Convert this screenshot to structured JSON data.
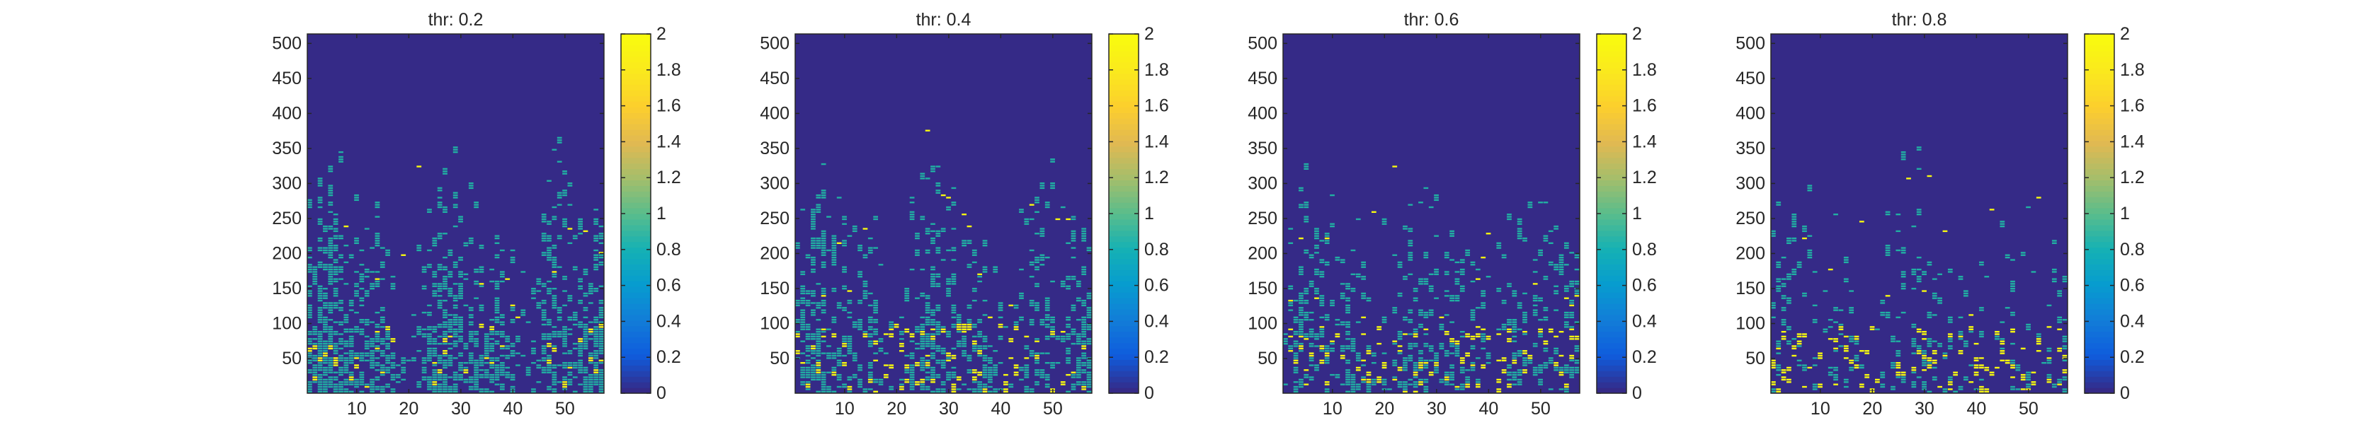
{
  "chart_data": [
    {
      "type": "heatmap",
      "title": "thr: 0.2",
      "xlabel": "",
      "ylabel": "",
      "x_ticks": [
        10,
        20,
        30,
        40,
        50
      ],
      "y_ticks": [
        50,
        100,
        150,
        200,
        250,
        300,
        350,
        400,
        450,
        500
      ],
      "xlim": [
        0.5,
        57.5
      ],
      "ylim": [
        0.5,
        513.5
      ],
      "colorbar": {
        "ticks": [
          "0",
          "0.2",
          "0.4",
          "0.6",
          "0.8",
          "1",
          "1.2",
          "1.4",
          "1.6",
          "1.8",
          "2"
        ],
        "range": [
          0,
          2
        ]
      },
      "colormap": "parula",
      "colors": {
        "zero": "#352a87",
        "one": "#21b0a3",
        "two": "#f9fb0e"
      },
      "threshold": 0.2
    },
    {
      "type": "heatmap",
      "title": "thr: 0.4",
      "xlabel": "",
      "ylabel": "",
      "x_ticks": [
        10,
        20,
        30,
        40,
        50
      ],
      "y_ticks": [
        50,
        100,
        150,
        200,
        250,
        300,
        350,
        400,
        450,
        500
      ],
      "xlim": [
        0.5,
        57.5
      ],
      "ylim": [
        0.5,
        513.5
      ],
      "colorbar": {
        "ticks": [
          "0",
          "0.2",
          "0.4",
          "0.6",
          "0.8",
          "1",
          "1.2",
          "1.4",
          "1.6",
          "1.8",
          "2"
        ],
        "range": [
          0,
          2
        ]
      },
      "colormap": "parula",
      "colors": {
        "zero": "#352a87",
        "one": "#21b0a3",
        "two": "#f9fb0e"
      },
      "threshold": 0.4
    },
    {
      "type": "heatmap",
      "title": "thr: 0.6",
      "xlabel": "",
      "ylabel": "",
      "x_ticks": [
        10,
        20,
        30,
        40,
        50
      ],
      "y_ticks": [
        50,
        100,
        150,
        200,
        250,
        300,
        350,
        400,
        450,
        500
      ],
      "xlim": [
        0.5,
        57.5
      ],
      "ylim": [
        0.5,
        513.5
      ],
      "colorbar": {
        "ticks": [
          "0",
          "0.2",
          "0.4",
          "0.6",
          "0.8",
          "1",
          "1.2",
          "1.4",
          "1.6",
          "1.8",
          "2"
        ],
        "range": [
          0,
          2
        ]
      },
      "colormap": "parula",
      "colors": {
        "zero": "#352a87",
        "one": "#21b0a3",
        "two": "#f9fb0e"
      },
      "threshold": 0.6
    },
    {
      "type": "heatmap",
      "title": "thr: 0.8",
      "xlabel": "",
      "ylabel": "",
      "x_ticks": [
        10,
        20,
        30,
        40,
        50
      ],
      "y_ticks": [
        50,
        100,
        150,
        200,
        250,
        300,
        350,
        400,
        450,
        500
      ],
      "xlim": [
        0.5,
        57.5
      ],
      "ylim": [
        0.5,
        513.5
      ],
      "colorbar": {
        "ticks": [
          "0",
          "0.2",
          "0.4",
          "0.6",
          "0.8",
          "1",
          "1.2",
          "1.4",
          "1.6",
          "1.8",
          "2"
        ],
        "range": [
          0,
          2
        ]
      },
      "colormap": "parula",
      "colors": {
        "zero": "#352a87",
        "one": "#21b0a3",
        "two": "#f9fb0e"
      },
      "threshold": 0.8
    }
  ]
}
